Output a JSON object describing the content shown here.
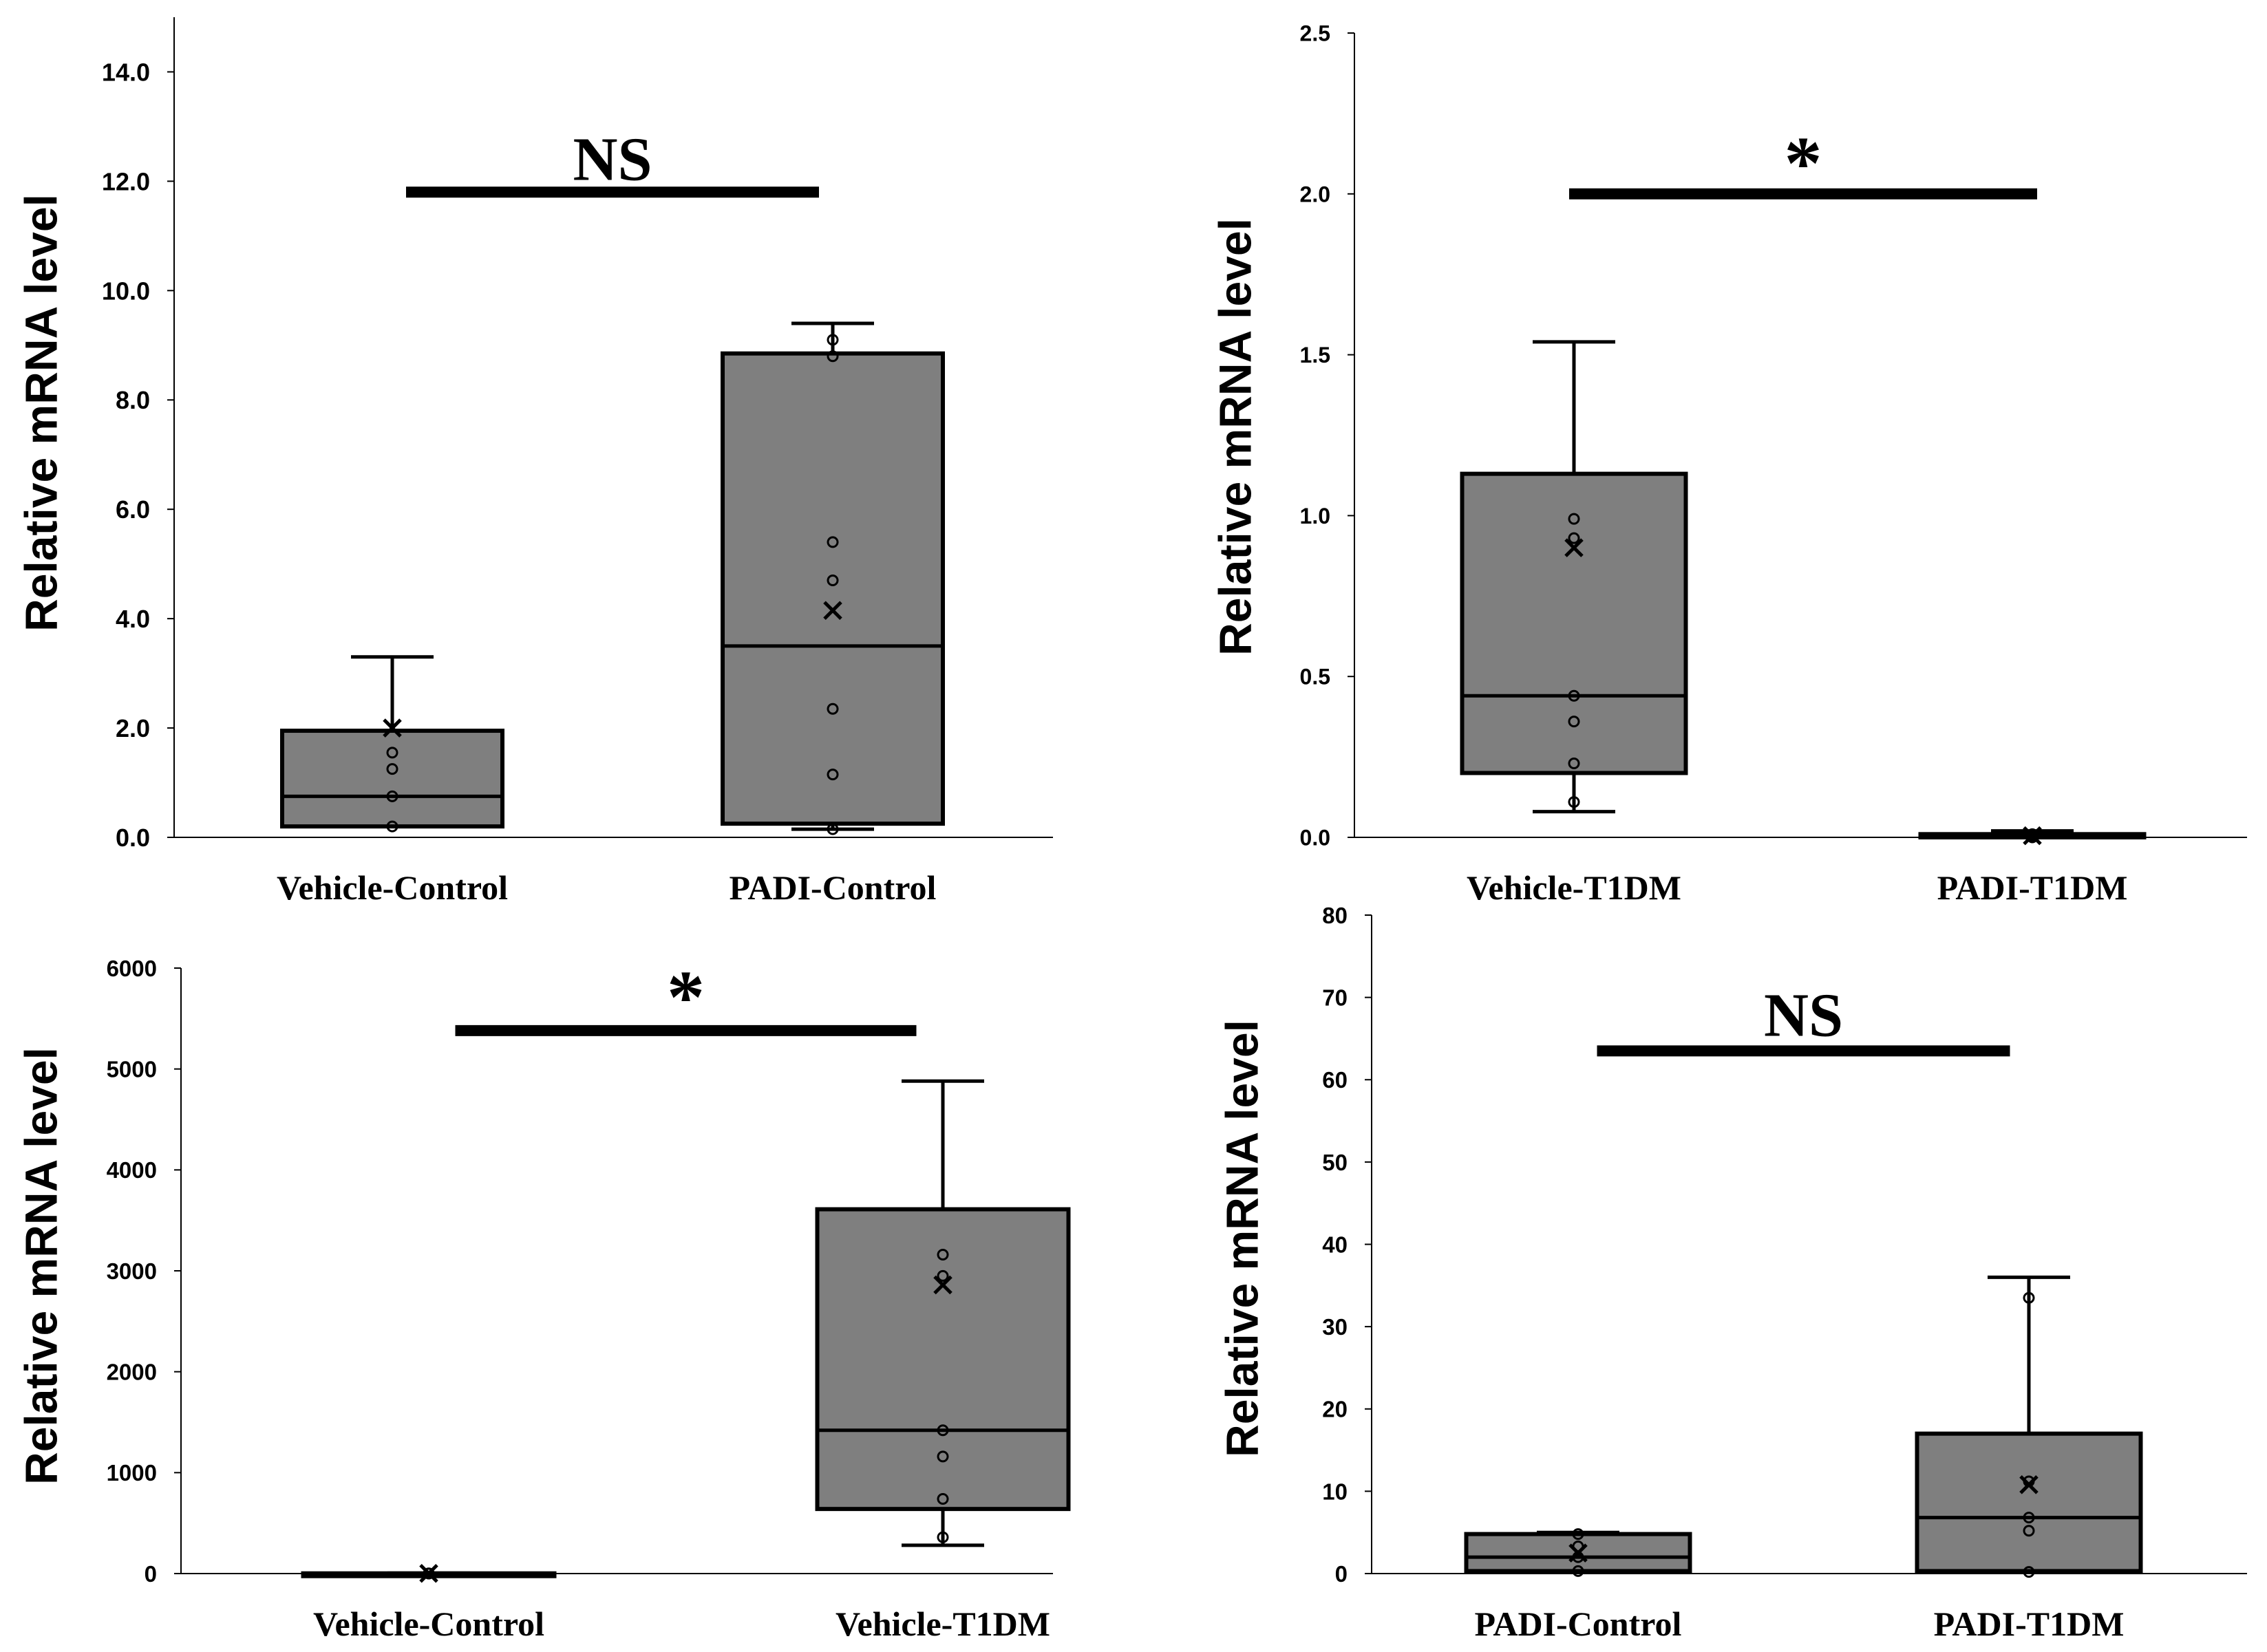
{
  "chart_data": [
    {
      "type": "box",
      "ylabel": "Relative mRNA level",
      "ylim": [
        0,
        15
      ],
      "yticks": [
        "0.0",
        "2.0",
        "4.0",
        "6.0",
        "8.0",
        "10.0",
        "12.0",
        "14.0"
      ],
      "ytick_values": [
        0,
        2,
        4,
        6,
        8,
        10,
        12,
        14
      ],
      "categories": [
        "Vehicle-Control",
        "PADI-Control"
      ],
      "boxes": [
        {
          "name": "Vehicle-Control",
          "min": 0.2,
          "q1": 0.2,
          "median": 0.75,
          "q3": 1.95,
          "max": 3.3,
          "mean": 2.0,
          "points": [
            0.2,
            0.75,
            1.25,
            1.55
          ]
        },
        {
          "name": "PADI-Control",
          "min": 0.15,
          "q1": 0.25,
          "median": 3.5,
          "q3": 8.85,
          "max": 9.4,
          "mean": 4.15,
          "points": [
            0.15,
            1.15,
            2.35,
            4.7,
            5.4,
            8.8,
            9.1
          ]
        }
      ],
      "significance": {
        "label": "NS",
        "y": 11.8
      }
    },
    {
      "type": "box",
      "ylabel": "Relative mRNA level",
      "ylim": [
        0,
        2.5
      ],
      "yticks": [
        "0.0",
        "0.5",
        "1.0",
        "1.5",
        "2.0",
        "2.5"
      ],
      "ytick_values": [
        0,
        0.5,
        1.0,
        1.5,
        2.0,
        2.5
      ],
      "categories": [
        "Vehicle-T1DM",
        "PADI-T1DM"
      ],
      "boxes": [
        {
          "name": "Vehicle-T1DM",
          "min": 0.08,
          "q1": 0.2,
          "median": 0.44,
          "q3": 1.13,
          "max": 1.54,
          "mean": 0.9,
          "points": [
            0.11,
            0.23,
            0.36,
            0.44,
            0.93,
            0.99
          ]
        },
        {
          "name": "PADI-T1DM",
          "min": 0.0,
          "q1": 0.0,
          "median": 0.005,
          "q3": 0.01,
          "max": 0.02,
          "mean": 0.005,
          "points": [
            0.0,
            0.005,
            0.01
          ]
        }
      ],
      "significance": {
        "label": "*",
        "y": 2.0
      }
    },
    {
      "type": "box",
      "ylabel": "Relative mRNA level",
      "ylim": [
        0,
        6000
      ],
      "yticks": [
        "0",
        "1000",
        "2000",
        "3000",
        "4000",
        "5000",
        "6000"
      ],
      "ytick_values": [
        0,
        1000,
        2000,
        3000,
        4000,
        5000,
        6000
      ],
      "categories": [
        "Vehicle-Control",
        "Vehicle-T1DM"
      ],
      "boxes": [
        {
          "name": "Vehicle-Control",
          "min": 0,
          "q1": 0,
          "median": 1,
          "q3": 2,
          "max": 4,
          "mean": 2,
          "points": [
            0,
            1,
            2
          ]
        },
        {
          "name": "Vehicle-T1DM",
          "min": 280,
          "q1": 640,
          "median": 1420,
          "q3": 3610,
          "max": 4880,
          "mean": 2860,
          "points": [
            360,
            740,
            1160,
            1420,
            2950,
            3160
          ]
        }
      ],
      "significance": {
        "label": "*",
        "y": 5380
      }
    },
    {
      "type": "box",
      "ylabel": "Relative mRNA level",
      "ylim": [
        0,
        80
      ],
      "yticks": [
        "0",
        "10",
        "20",
        "30",
        "40",
        "50",
        "60",
        "70",
        "80"
      ],
      "ytick_values": [
        0,
        10,
        20,
        30,
        40,
        50,
        60,
        70,
        80
      ],
      "categories": [
        "PADI-Control",
        "PADI-T1DM"
      ],
      "boxes": [
        {
          "name": "PADI-Control",
          "min": 0.3,
          "q1": 0.3,
          "median": 2.0,
          "q3": 4.8,
          "max": 5.0,
          "mean": 2.5,
          "points": [
            0.3,
            2.0,
            3.3,
            4.8
          ]
        },
        {
          "name": "PADI-T1DM",
          "min": 0.2,
          "q1": 0.3,
          "median": 6.8,
          "q3": 17.0,
          "max": 36.0,
          "mean": 10.8,
          "points": [
            0.2,
            5.2,
            6.8,
            11.2,
            33.5
          ]
        }
      ],
      "significance": {
        "label": "NS",
        "y": 63.5
      }
    }
  ]
}
